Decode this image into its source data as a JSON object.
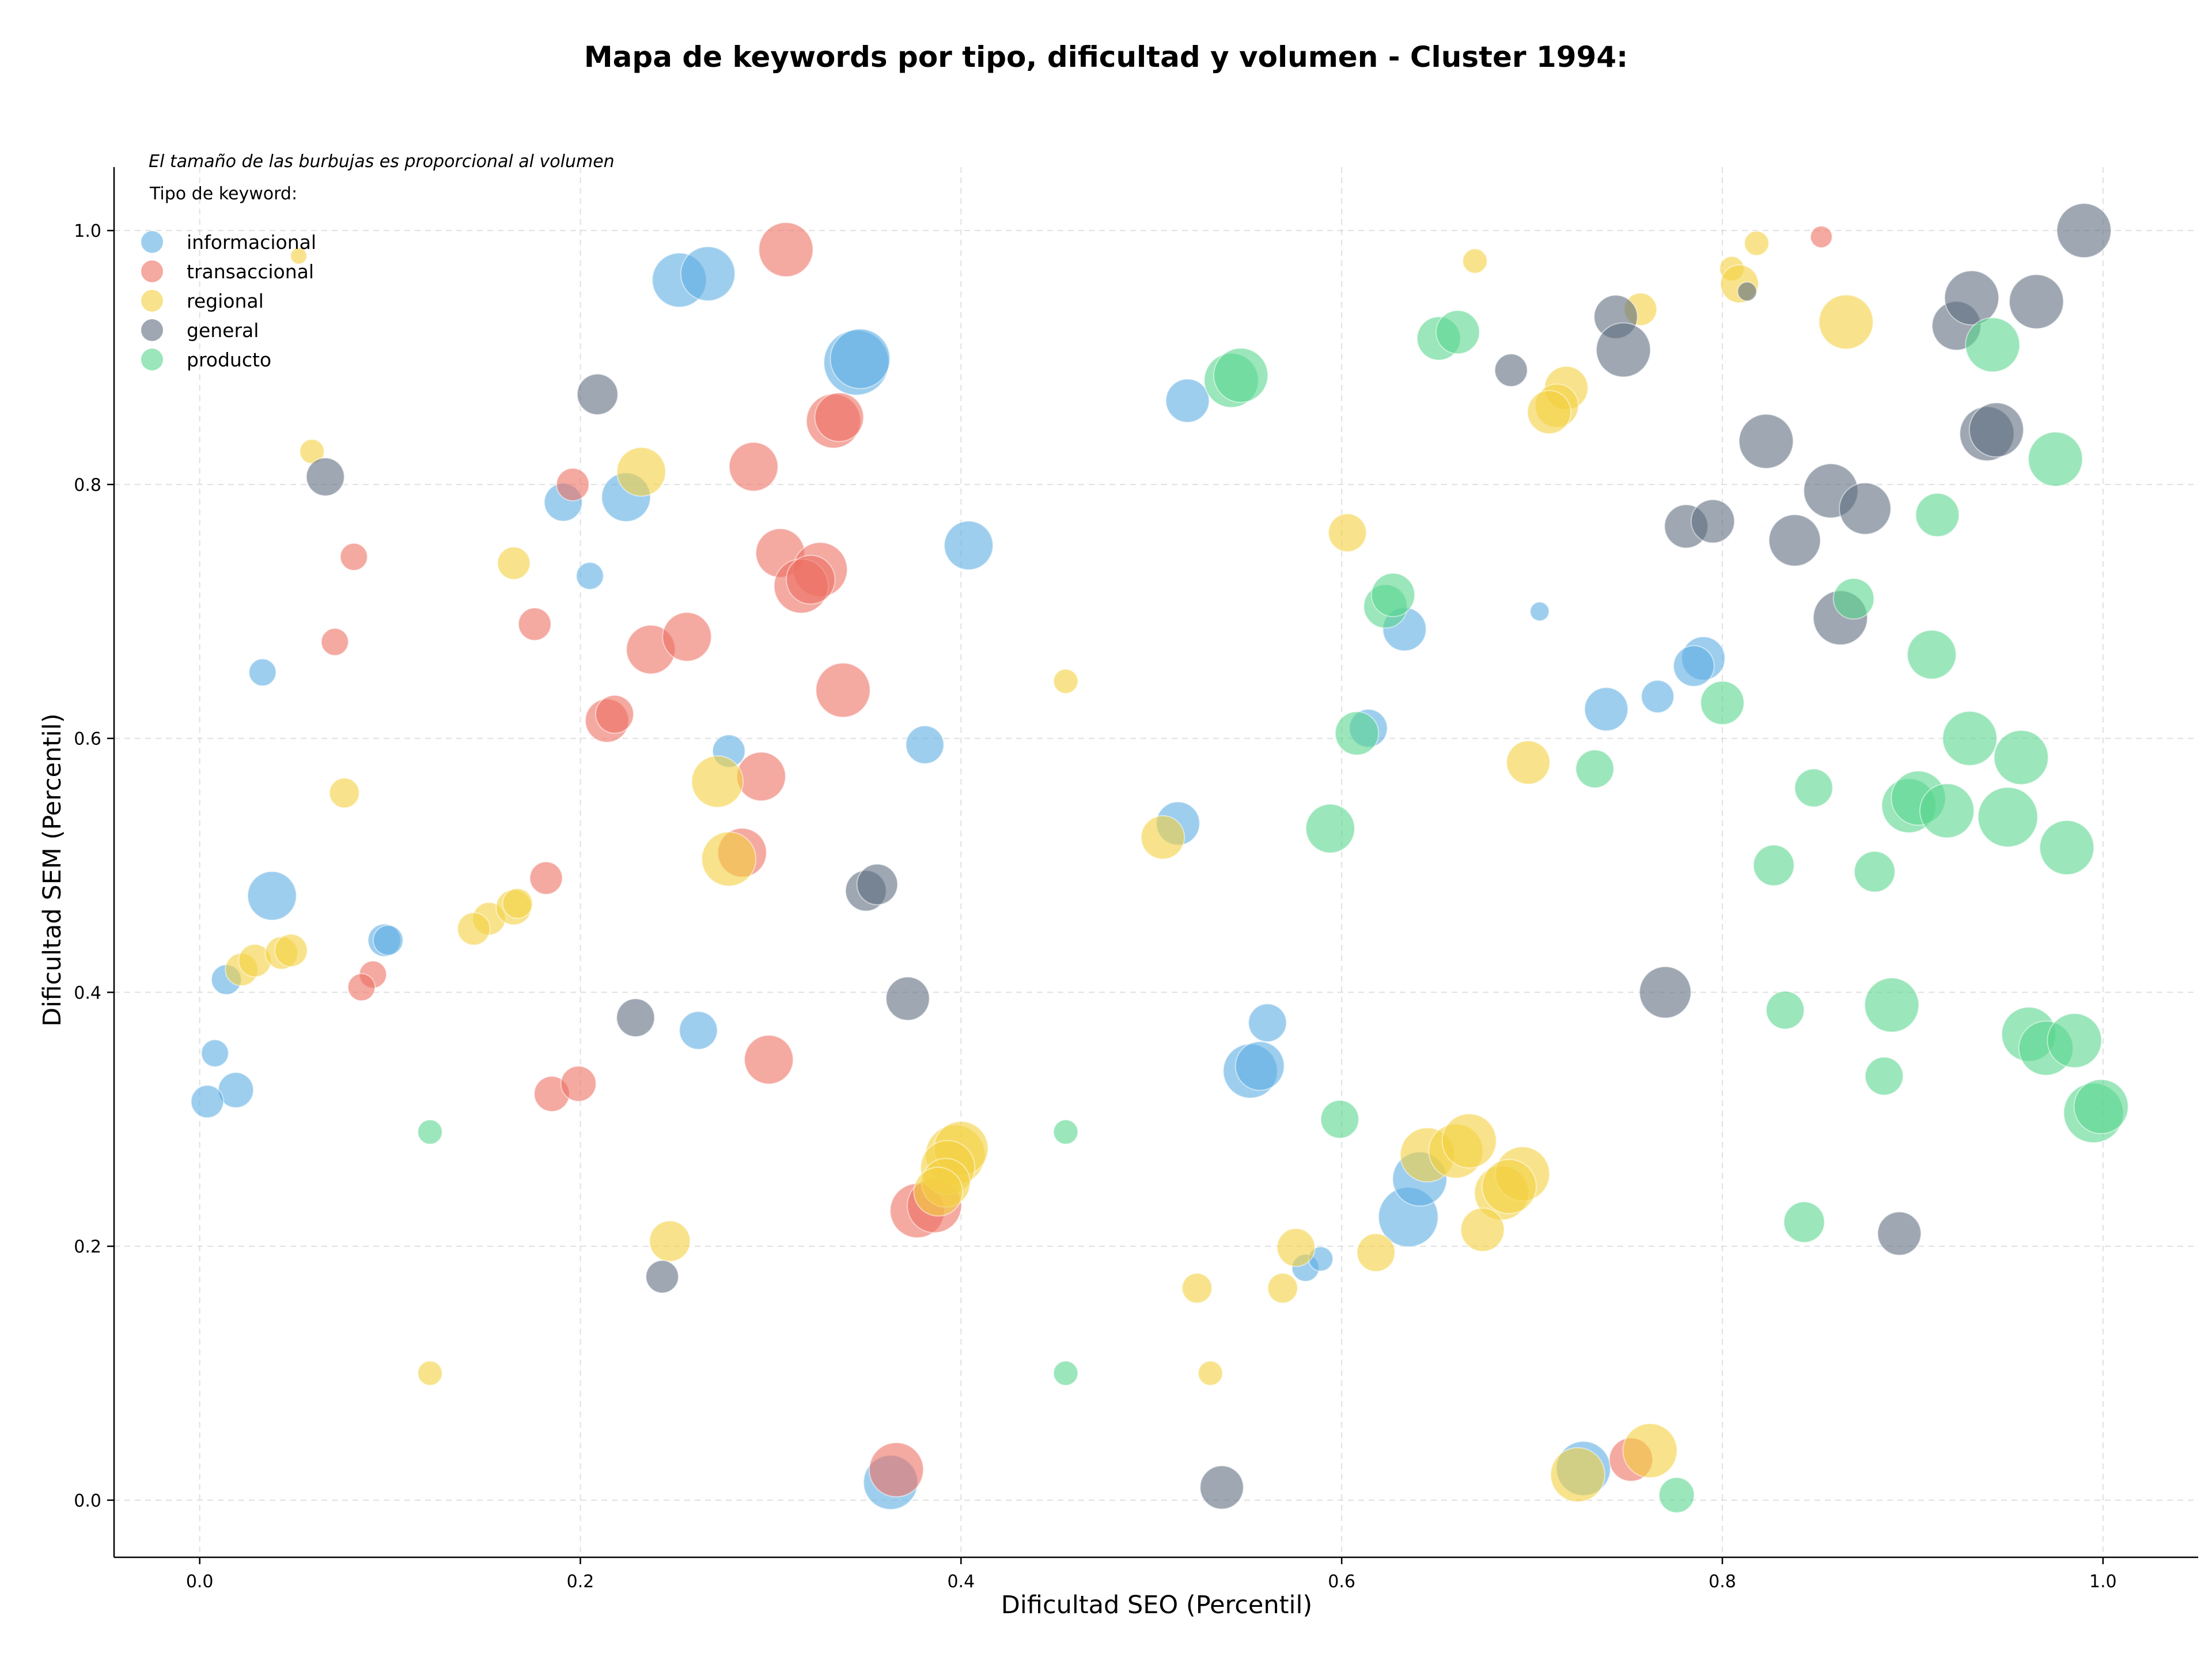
{
  "chart_data": {
    "type": "scatter",
    "title": "Mapa de keywords por tipo, dificultad y volumen - Cluster 1994:",
    "xlabel": "Dificultad SEO (Percentil)",
    "ylabel": "Dificultad SEM (Percentil)",
    "xlim": [
      -0.045,
      1.05
    ],
    "ylim": [
      -0.045,
      1.05
    ],
    "xticks": [
      0.0,
      0.2,
      0.4,
      0.6,
      0.8,
      1.0
    ],
    "yticks": [
      0.0,
      0.2,
      0.4,
      0.6,
      0.8,
      1.0
    ],
    "xtick_labels": [
      "0.0",
      "0.2",
      "0.4",
      "0.6",
      "0.8",
      "1.0"
    ],
    "ytick_labels": [
      "0.0",
      "0.2",
      "0.4",
      "0.6",
      "0.8",
      "1.0"
    ],
    "grid": true,
    "annotation": "El tamaño de las burbujas es proporcional al volumen",
    "legend_title": "Tipo de keyword:",
    "legend_position": "top-left",
    "series": [
      {
        "name": "informacional",
        "color": "#5dade2",
        "points": [
          [
            0.252,
            0.961,
            1.0
          ],
          [
            0.267,
            0.966,
            1.0
          ],
          [
            0.345,
            0.896,
            1.2
          ],
          [
            0.347,
            0.899,
            1.1
          ],
          [
            0.519,
            0.866,
            0.8
          ],
          [
            0.191,
            0.786,
            0.7
          ],
          [
            0.224,
            0.79,
            0.9
          ],
          [
            0.404,
            0.752,
            0.9
          ],
          [
            0.205,
            0.728,
            0.5
          ],
          [
            0.033,
            0.652,
            0.5
          ],
          [
            0.278,
            0.59,
            0.6
          ],
          [
            0.381,
            0.595,
            0.7
          ],
          [
            0.038,
            0.476,
            0.9
          ],
          [
            0.097,
            0.441,
            0.6
          ],
          [
            0.099,
            0.441,
            0.55
          ],
          [
            0.014,
            0.41,
            0.55
          ],
          [
            0.008,
            0.352,
            0.5
          ],
          [
            0.019,
            0.323,
            0.65
          ],
          [
            0.004,
            0.314,
            0.6
          ],
          [
            0.262,
            0.37,
            0.7
          ],
          [
            0.514,
            0.533,
            0.8
          ],
          [
            0.561,
            0.376,
            0.7
          ],
          [
            0.552,
            0.338,
            1.0
          ],
          [
            0.557,
            0.342,
            0.9
          ],
          [
            0.614,
            0.608,
            0.7
          ],
          [
            0.633,
            0.686,
            0.8
          ],
          [
            0.704,
            0.7,
            0.35
          ],
          [
            0.739,
            0.623,
            0.8
          ],
          [
            0.766,
            0.633,
            0.6
          ],
          [
            0.79,
            0.663,
            0.8
          ],
          [
            0.785,
            0.657,
            0.75
          ],
          [
            0.635,
            0.223,
            1.1
          ],
          [
            0.641,
            0.253,
            1.0
          ],
          [
            0.581,
            0.183,
            0.5
          ],
          [
            0.589,
            0.19,
            0.45
          ],
          [
            0.363,
            0.014,
            1.0
          ],
          [
            0.727,
            0.025,
            1.0
          ]
        ]
      },
      {
        "name": "transaccional",
        "color": "#ec7063",
        "points": [
          [
            0.308,
            0.985,
            1.0
          ],
          [
            0.333,
            0.85,
            1.0
          ],
          [
            0.336,
            0.853,
            0.9
          ],
          [
            0.291,
            0.814,
            0.9
          ],
          [
            0.196,
            0.8,
            0.6
          ],
          [
            0.081,
            0.743,
            0.5
          ],
          [
            0.305,
            0.746,
            0.9
          ],
          [
            0.326,
            0.733,
            1.0
          ],
          [
            0.316,
            0.72,
            1.0
          ],
          [
            0.321,
            0.725,
            0.9
          ],
          [
            0.176,
            0.69,
            0.6
          ],
          [
            0.071,
            0.676,
            0.5
          ],
          [
            0.237,
            0.67,
            0.9
          ],
          [
            0.256,
            0.68,
            0.9
          ],
          [
            0.338,
            0.638,
            1.0
          ],
          [
            0.214,
            0.614,
            0.8
          ],
          [
            0.218,
            0.619,
            0.7
          ],
          [
            0.295,
            0.57,
            0.9
          ],
          [
            0.285,
            0.51,
            0.9
          ],
          [
            0.182,
            0.49,
            0.6
          ],
          [
            0.091,
            0.414,
            0.5
          ],
          [
            0.085,
            0.404,
            0.5
          ],
          [
            0.185,
            0.32,
            0.65
          ],
          [
            0.199,
            0.328,
            0.65
          ],
          [
            0.299,
            0.347,
            0.9
          ],
          [
            0.377,
            0.228,
            1.0
          ],
          [
            0.386,
            0.232,
            1.0
          ],
          [
            0.366,
            0.024,
            1.0
          ],
          [
            0.752,
            0.032,
            0.8
          ],
          [
            0.852,
            0.995,
            0.4
          ]
        ]
      },
      {
        "name": "regional",
        "color": "#f4d03f",
        "points": [
          [
            0.052,
            0.98,
            0.3
          ],
          [
            0.059,
            0.826,
            0.45
          ],
          [
            0.232,
            0.81,
            0.9
          ],
          [
            0.165,
            0.738,
            0.6
          ],
          [
            0.076,
            0.557,
            0.55
          ],
          [
            0.272,
            0.566,
            0.95
          ],
          [
            0.278,
            0.505,
            1.0
          ],
          [
            0.152,
            0.458,
            0.6
          ],
          [
            0.144,
            0.45,
            0.6
          ],
          [
            0.165,
            0.467,
            0.65
          ],
          [
            0.167,
            0.47,
            0.55
          ],
          [
            0.022,
            0.418,
            0.6
          ],
          [
            0.029,
            0.425,
            0.6
          ],
          [
            0.043,
            0.431,
            0.6
          ],
          [
            0.048,
            0.433,
            0.6
          ],
          [
            0.247,
            0.204,
            0.75
          ],
          [
            0.121,
            0.1,
            0.45
          ],
          [
            0.455,
            0.645,
            0.45
          ],
          [
            0.506,
            0.522,
            0.8
          ],
          [
            0.397,
            0.272,
            1.1
          ],
          [
            0.4,
            0.277,
            1.0
          ],
          [
            0.393,
            0.262,
            1.0
          ],
          [
            0.392,
            0.25,
            0.9
          ],
          [
            0.388,
            0.243,
            0.9
          ],
          [
            0.603,
            0.762,
            0.7
          ],
          [
            0.576,
            0.199,
            0.7
          ],
          [
            0.618,
            0.195,
            0.7
          ],
          [
            0.524,
            0.167,
            0.55
          ],
          [
            0.569,
            0.167,
            0.55
          ],
          [
            0.531,
            0.1,
            0.45
          ],
          [
            0.67,
            0.976,
            0.45
          ],
          [
            0.718,
            0.876,
            0.8
          ],
          [
            0.713,
            0.862,
            0.8
          ],
          [
            0.709,
            0.857,
            0.8
          ],
          [
            0.757,
            0.938,
            0.6
          ],
          [
            0.698,
            0.581,
            0.8
          ],
          [
            0.645,
            0.272,
            1.0
          ],
          [
            0.66,
            0.275,
            1.0
          ],
          [
            0.667,
            0.283,
            1.0
          ],
          [
            0.684,
            0.242,
            1.0
          ],
          [
            0.695,
            0.257,
            1.0
          ],
          [
            0.688,
            0.247,
            1.0
          ],
          [
            0.674,
            0.213,
            0.8
          ],
          [
            0.762,
            0.039,
            1.0
          ],
          [
            0.724,
            0.02,
            1.0
          ],
          [
            0.805,
            0.97,
            0.45
          ],
          [
            0.809,
            0.958,
            0.7
          ],
          [
            0.818,
            0.99,
            0.45
          ],
          [
            0.865,
            0.928,
            1.0
          ]
        ]
      },
      {
        "name": "general",
        "color": "#5d6d7e",
        "points": [
          [
            0.066,
            0.806,
            0.7
          ],
          [
            0.209,
            0.871,
            0.75
          ],
          [
            0.229,
            0.38,
            0.7
          ],
          [
            0.243,
            0.176,
            0.6
          ],
          [
            0.35,
            0.48,
            0.75
          ],
          [
            0.356,
            0.485,
            0.75
          ],
          [
            0.372,
            0.395,
            0.8
          ],
          [
            0.537,
            0.01,
            0.8
          ],
          [
            0.689,
            0.89,
            0.6
          ],
          [
            0.744,
            0.932,
            0.8
          ],
          [
            0.748,
            0.906,
            1.0
          ],
          [
            0.781,
            0.767,
            0.8
          ],
          [
            0.795,
            0.771,
            0.8
          ],
          [
            0.77,
            0.4,
            0.95
          ],
          [
            0.813,
            0.952,
            0.35
          ],
          [
            0.823,
            0.834,
            1.0
          ],
          [
            0.838,
            0.756,
            0.95
          ],
          [
            0.857,
            0.795,
            1.0
          ],
          [
            0.875,
            0.781,
            0.95
          ],
          [
            0.862,
            0.695,
            1.0
          ],
          [
            0.893,
            0.21,
            0.8
          ],
          [
            0.923,
            0.925,
            0.9
          ],
          [
            0.931,
            0.947,
            1.0
          ],
          [
            0.939,
            0.84,
            1.0
          ],
          [
            0.944,
            0.843,
            1.0
          ],
          [
            0.965,
            0.944,
            1.0
          ],
          [
            0.99,
            1.0,
            1.0
          ]
        ]
      },
      {
        "name": "producto",
        "color": "#58d68d",
        "points": [
          [
            0.121,
            0.29,
            0.45
          ],
          [
            0.455,
            0.29,
            0.45
          ],
          [
            0.455,
            0.1,
            0.45
          ],
          [
            0.542,
            0.882,
            1.0
          ],
          [
            0.547,
            0.886,
            1.0
          ],
          [
            0.594,
            0.529,
            0.9
          ],
          [
            0.599,
            0.3,
            0.7
          ],
          [
            0.608,
            0.604,
            0.8
          ],
          [
            0.623,
            0.704,
            0.8
          ],
          [
            0.627,
            0.713,
            0.8
          ],
          [
            0.651,
            0.915,
            0.8
          ],
          [
            0.661,
            0.92,
            0.8
          ],
          [
            0.733,
            0.576,
            0.7
          ],
          [
            0.776,
            0.004,
            0.65
          ],
          [
            0.8,
            0.628,
            0.8
          ],
          [
            0.827,
            0.5,
            0.75
          ],
          [
            0.833,
            0.386,
            0.7
          ],
          [
            0.843,
            0.219,
            0.75
          ],
          [
            0.848,
            0.561,
            0.7
          ],
          [
            0.869,
            0.71,
            0.75
          ],
          [
            0.88,
            0.495,
            0.75
          ],
          [
            0.885,
            0.334,
            0.7
          ],
          [
            0.889,
            0.39,
            1.0
          ],
          [
            0.898,
            0.547,
            1.0
          ],
          [
            0.903,
            0.553,
            1.0
          ],
          [
            0.91,
            0.666,
            0.9
          ],
          [
            0.913,
            0.776,
            0.8
          ],
          [
            0.918,
            0.543,
            1.0
          ],
          [
            0.93,
            0.6,
            1.0
          ],
          [
            0.942,
            0.91,
            1.0
          ],
          [
            0.95,
            0.538,
            1.1
          ],
          [
            0.957,
            0.585,
            1.0
          ],
          [
            0.961,
            0.367,
            1.0
          ],
          [
            0.97,
            0.356,
            1.0
          ],
          [
            0.975,
            0.82,
            1.0
          ],
          [
            0.981,
            0.514,
            1.0
          ],
          [
            0.985,
            0.362,
            1.0
          ],
          [
            0.995,
            0.305,
            1.1
          ],
          [
            0.999,
            0.31,
            1.0
          ]
        ]
      }
    ]
  }
}
